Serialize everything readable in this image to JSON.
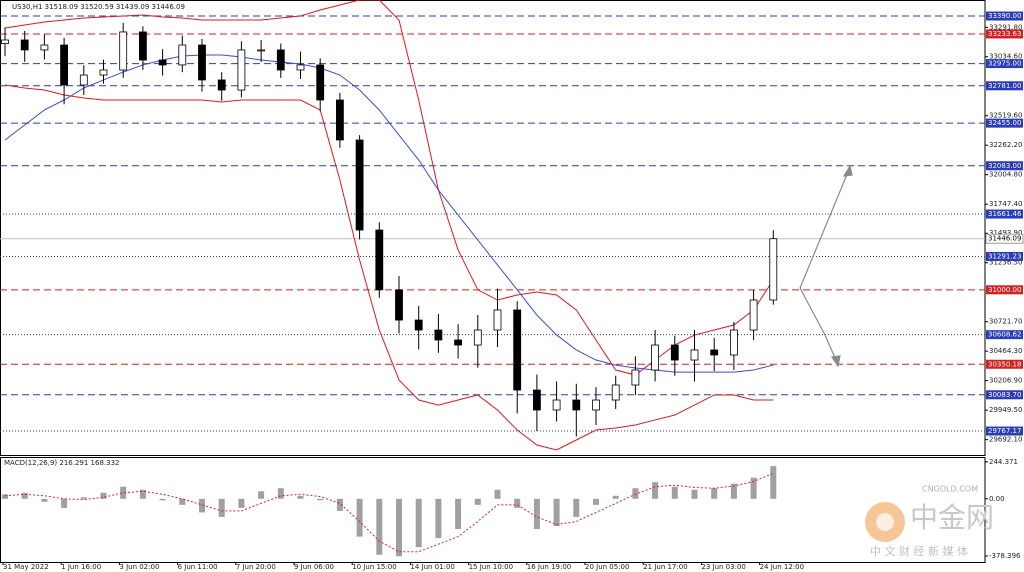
{
  "chart_data": {
    "type": "candlestick",
    "title": "US30,H1  31518.09 31520.59 31439.09 31446.09",
    "open": [
      33150,
      33181,
      33094,
      33137,
      32788,
      32875,
      32919,
      33251,
      33006,
      32963,
      33137,
      32832,
      32744,
      33094,
      33094,
      32919,
      32963,
      32657,
      32308,
      31522,
      31000,
      30736,
      30649,
      30562,
      30518,
      30649,
      30824,
      30125,
      29951,
      30038,
      29951,
      30038,
      30169,
      30300,
      30518,
      30387,
      30475,
      30431,
      30649,
      30911
    ],
    "high": [
      33290,
      33260,
      33230,
      33200,
      32960,
      33010,
      33330,
      33300,
      33100,
      33220,
      33190,
      32900,
      33170,
      33180,
      33150,
      33080,
      33020,
      32720,
      32350,
      31590,
      31120,
      30860,
      30790,
      30700,
      30780,
      31010,
      30900,
      30260,
      30200,
      30180,
      30150,
      30250,
      30420,
      30650,
      30600,
      30650,
      30580,
      30720,
      31000,
      31520
    ],
    "low": [
      33040,
      32990,
      33010,
      32620,
      32700,
      32800,
      32850,
      32920,
      32870,
      32900,
      32730,
      32650,
      32680,
      32990,
      32850,
      32840,
      32560,
      32240,
      31440,
      30930,
      30620,
      30480,
      30450,
      30400,
      30320,
      30500,
      29920,
      29767,
      29850,
      29720,
      29820,
      29960,
      30080,
      30200,
      30250,
      30200,
      30290,
      30300,
      30560,
      30870
    ],
    "close": [
      33181,
      33094,
      33137,
      32788,
      32875,
      32919,
      33251,
      33006,
      32963,
      33137,
      32832,
      32744,
      33094,
      33094,
      32919,
      32963,
      32657,
      32308,
      31522,
      31000,
      30736,
      30649,
      30562,
      30518,
      30649,
      30824,
      30125,
      29951,
      30038,
      29951,
      30038,
      30169,
      30300,
      30518,
      30387,
      30475,
      30431,
      30649,
      30911,
      31446.09
    ],
    "color_up": "#ffffff",
    "color_down": "#000000",
    "lines": [
      {
        "color": "#e01818",
        "values": [
          33286,
          33312,
          33338,
          33355,
          33373,
          33382,
          33390,
          33399,
          33382,
          33373,
          33355,
          33355,
          33355,
          33355,
          33373,
          33390,
          33443,
          33486,
          33530,
          33530,
          33355,
          32657,
          31871,
          31348,
          31000,
          30911,
          30955,
          30981,
          30955,
          30824,
          30562,
          30300,
          30256,
          30387,
          30518,
          30605,
          30649,
          30693,
          30824,
          31086
        ]
      },
      {
        "color": "#e01818",
        "values": [
          32788,
          32762,
          32744,
          32701,
          32674,
          32657,
          32657,
          32657,
          32657,
          32657,
          32657,
          32640,
          32657,
          32657,
          32657,
          32657,
          32570,
          31959,
          31260,
          30649,
          30213,
          30038,
          29994,
          30038,
          30082,
          29951,
          29776,
          29645,
          29602,
          29689,
          29776,
          29794,
          29820,
          29864,
          29907,
          29994,
          30082,
          30082,
          30038,
          30038
        ]
      },
      {
        "color": "#3a4fd0",
        "values": [
          32308,
          32439,
          32570,
          32657,
          32762,
          32832,
          32901,
          32963,
          33006,
          33041,
          33050,
          33050,
          33032,
          33006,
          32989,
          32971,
          32936,
          32875,
          32744,
          32570,
          32351,
          32133,
          31871,
          31653,
          31435,
          31217,
          31000,
          30780,
          30606,
          30475,
          30387,
          30343,
          30317,
          30300,
          30282,
          30282,
          30282,
          30282,
          30300,
          30343
        ]
      }
    ],
    "ylim": [
      29558,
      33530
    ],
    "yticks": [
      {
        "value": 33291.8,
        "label": "33291.80"
      },
      {
        "value": 33034.6,
        "label": "33034.60"
      },
      {
        "value": 32519.6,
        "label": "32519.60"
      },
      {
        "value": 32262.2,
        "label": "32262.20"
      },
      {
        "value": 32004.8,
        "label": "32004.80"
      },
      {
        "value": 31747.4,
        "label": "31747.40"
      },
      {
        "value": 31493.9,
        "label": "31493.90"
      },
      {
        "value": 31236.5,
        "label": "31236.50"
      },
      {
        "value": 30721.7,
        "label": "30721.70"
      },
      {
        "value": 30464.3,
        "label": "30464.30"
      },
      {
        "value": 30206.9,
        "label": "30206.90"
      },
      {
        "value": 29949.5,
        "label": "29949.50"
      },
      {
        "value": 29692.1,
        "label": "29692.10"
      }
    ],
    "levels": [
      {
        "value": 33390,
        "label": "33390.00",
        "color": "#2a3cb8",
        "style": "dashed"
      },
      {
        "value": 33233.63,
        "label": "33233.63",
        "color": "#d42020",
        "style": "dashed"
      },
      {
        "value": 32975,
        "label": "32975.00",
        "color": "#2a3cb8",
        "style": "dashed"
      },
      {
        "value": 32781,
        "label": "32781.00",
        "color": "#2a3cb8",
        "style": "dashed"
      },
      {
        "value": 32455,
        "label": "32455.00",
        "color": "#2a3cb8",
        "style": "dashed"
      },
      {
        "value": 32083,
        "label": "32083.00",
        "color": "#2a3cb8",
        "style": "dashed"
      },
      {
        "value": 31661.46,
        "label": "31661.46",
        "color": "#2a3cb8",
        "style": "dotted"
      },
      {
        "value": 31446.09,
        "label": "31446.09",
        "color": "#c0c0c0",
        "style": "current"
      },
      {
        "value": 31291.23,
        "label": "31291.23",
        "color": "#2a3cb8",
        "style": "dotted"
      },
      {
        "value": 31000,
        "label": "31000.00",
        "color": "#d42020",
        "style": "dashed"
      },
      {
        "value": 30608.62,
        "label": "30608.62",
        "color": "#2a3cb8",
        "style": "dotted"
      },
      {
        "value": 30350.18,
        "label": "30350.18",
        "color": "#d42020",
        "style": "dashed"
      },
      {
        "value": 30083.7,
        "label": "30083.70",
        "color": "#2a3cb8",
        "style": "dashed"
      },
      {
        "value": 29767.17,
        "label": "29767.17",
        "color": "#2a3cb8",
        "style": "dotted"
      }
    ],
    "time_labels": [
      "31 May 2022",
      "1 Jun 16:00",
      "3 Jun 02:00",
      "6 Jun 11:00",
      "7 Jun 20:00",
      "9 Jun 06:00",
      "10 Jun 15:00",
      "14 Jun 01:00",
      "15 Jun 10:00",
      "16 Jun 19:00",
      "20 Jun 05:00",
      "21 Jun 17:00",
      "23 Jun 03:00",
      "24 Jun 12:00"
    ],
    "indicator": {
      "type": "macd",
      "label": "MACD(12,26,9) 216.291 168.332",
      "color": "#a0a0a0",
      "signal_color": "#e02020",
      "histogram": [
        30,
        40,
        -20,
        -60,
        10,
        40,
        80,
        60,
        -10,
        -40,
        -90,
        -120,
        -60,
        50,
        70,
        20,
        -10,
        -80,
        -250,
        -370,
        -380,
        -320,
        -260,
        -200,
        -40,
        60,
        -60,
        -200,
        -180,
        -120,
        -40,
        20,
        70,
        110,
        80,
        60,
        70,
        100,
        140,
        216.291
      ],
      "signal": [
        20,
        30,
        20,
        0,
        -5,
        10,
        40,
        50,
        30,
        0,
        -40,
        -80,
        -80,
        -30,
        20,
        30,
        15,
        -30,
        -150,
        -280,
        -350,
        -350,
        -300,
        -250,
        -150,
        -40,
        -40,
        -120,
        -170,
        -150,
        -90,
        -30,
        30,
        80,
        90,
        75,
        70,
        85,
        115,
        168.332
      ],
      "ylim": [
        -418,
        270
      ],
      "yticks": [
        {
          "value": 244.371,
          "label": "244.371"
        },
        {
          "value": 0,
          "label": "0.00"
        },
        {
          "value": -378.396,
          "label": "-378.396"
        }
      ]
    }
  },
  "watermark": {
    "name": "中金网",
    "site": "CNGOLD.COM",
    "tagline": "中 文 财 经 新 媒 体"
  }
}
